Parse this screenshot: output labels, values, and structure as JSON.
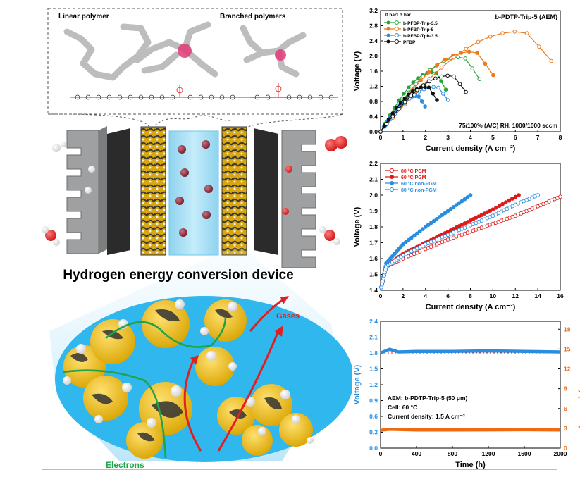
{
  "schematic": {
    "linear_label": "Linear polymer",
    "branched_label": "Branched polymers",
    "device_title": "Hydrogen energy conversion device",
    "gases_label": "Gases",
    "electrons_label": "Electrons",
    "colors": {
      "catalyst_yellow": "#f2c21a",
      "catalyst_dark": "#3b3b3b",
      "membrane": "#9fdcf3",
      "bubble": "#8c2d3b",
      "gas_arrow": "#e02020",
      "electron_path": "#1fa447",
      "plate": "#a9aaab"
    }
  },
  "chart_data": [
    {
      "type": "scatter",
      "title": "b-PDTP-Trip-5 (AEM)",
      "annotation": "75/100% (A/C) RH, 1000/1000 sccm",
      "legend_header": [
        "0 bar",
        "1.3 bar"
      ],
      "xlabel": "Current density (A cm⁻²)",
      "ylabel": "Voltage (V)",
      "xlim": [
        0,
        8
      ],
      "ylim": [
        0,
        3.2
      ],
      "xticks": [
        "0",
        "1",
        "2",
        "3",
        "4",
        "5",
        "6",
        "7",
        "8"
      ],
      "yticks": [
        "0.0",
        "0.4",
        "0.8",
        "1.2",
        "1.6",
        "2.0",
        "2.4",
        "2.8",
        "3.2"
      ],
      "series": [
        {
          "name": "b-PFBP-Trip-3.5",
          "color": "#2aa13c",
          "xmax": 4.4,
          "ypeak": 1.83
        },
        {
          "name": "b-PFBP-Trip-5",
          "color": "#ef7a1a",
          "xmax": 7.6,
          "ypeak": 2.46
        },
        {
          "name": "b-PFBP-Tpb-3.5",
          "color": "#2a8ee0",
          "xmax": 3.0,
          "ypeak": 1.1
        },
        {
          "name": "PFBP",
          "color": "#111111",
          "xmax": 3.8,
          "ypeak": 1.38
        }
      ]
    },
    {
      "type": "line",
      "xlabel": "Current density (A cm⁻²)",
      "ylabel": "Voltage (V)",
      "xlim": [
        0,
        16
      ],
      "ylim": [
        1.4,
        2.2
      ],
      "xticks": [
        "0",
        "2",
        "4",
        "6",
        "8",
        "10",
        "12",
        "14",
        "16"
      ],
      "yticks": [
        "1.4",
        "1.5",
        "1.6",
        "1.7",
        "1.8",
        "1.9",
        "2.0",
        "2.1",
        "2.2"
      ],
      "series": [
        {
          "name": "80 °C PGM",
          "color": "#e01919",
          "filled": false,
          "x": [
            0,
            0.5,
            2,
            4,
            6,
            8,
            10,
            12,
            14,
            16
          ],
          "y": [
            1.4,
            1.55,
            1.6,
            1.66,
            1.72,
            1.77,
            1.82,
            1.87,
            1.93,
            1.99
          ]
        },
        {
          "name": "60 °C PGM",
          "color": "#e01919",
          "filled": true,
          "x": [
            0,
            0.5,
            2,
            4,
            6,
            8,
            10,
            12.3
          ],
          "y": [
            1.4,
            1.55,
            1.63,
            1.7,
            1.77,
            1.84,
            1.91,
            2.0
          ]
        },
        {
          "name": "60 °C non-PGM",
          "color": "#2a8ee0",
          "filled": true,
          "x": [
            0,
            0.5,
            2,
            4,
            6,
            8
          ],
          "y": [
            1.4,
            1.57,
            1.69,
            1.8,
            1.9,
            2.0
          ]
        },
        {
          "name": "80 °C non-PGM",
          "color": "#2a8ee0",
          "filled": false,
          "x": [
            0,
            0.5,
            2,
            4,
            6,
            8,
            10,
            12,
            14
          ],
          "y": [
            1.4,
            1.55,
            1.62,
            1.69,
            1.75,
            1.81,
            1.87,
            1.94,
            2.0
          ]
        }
      ]
    },
    {
      "type": "line",
      "xlabel": "Time (h)",
      "ylabel": "Voltage (V)",
      "ylabel_right": "Power density (W cm⁻²)",
      "xlim": [
        0,
        2000
      ],
      "ylim": [
        0,
        2.4
      ],
      "ylim_right": [
        0,
        19.2
      ],
      "xticks": [
        "0",
        "400",
        "800",
        "1200",
        "1600",
        "2000"
      ],
      "yticks": [
        "0.0",
        "0.3",
        "0.6",
        "0.9",
        "1.2",
        "1.5",
        "1.8",
        "2.1",
        "2.4"
      ],
      "yticks_right": [
        "0",
        "3",
        "6",
        "9",
        "12",
        "15",
        "18"
      ],
      "annotations": [
        "AEM: b-PDTP-Trip-5 (50 μm)",
        "Cell: 60 °C",
        "Current density: 1.5 A cm⁻²"
      ],
      "reference_line": 1.8,
      "series": [
        {
          "name": "Voltage",
          "color": "#2a8ee0",
          "x": [
            0,
            100,
            200,
            400,
            800,
            1200,
            1600,
            2000
          ],
          "y": [
            1.8,
            1.87,
            1.82,
            1.83,
            1.83,
            1.84,
            1.83,
            1.82
          ]
        },
        {
          "name": "Power density",
          "color": "#ef6a10",
          "axis": "right",
          "x": [
            0,
            100,
            400,
            800,
            1200,
            1600,
            2000
          ],
          "y": [
            2.7,
            2.85,
            2.75,
            2.75,
            2.76,
            2.78,
            2.75
          ]
        }
      ]
    }
  ]
}
